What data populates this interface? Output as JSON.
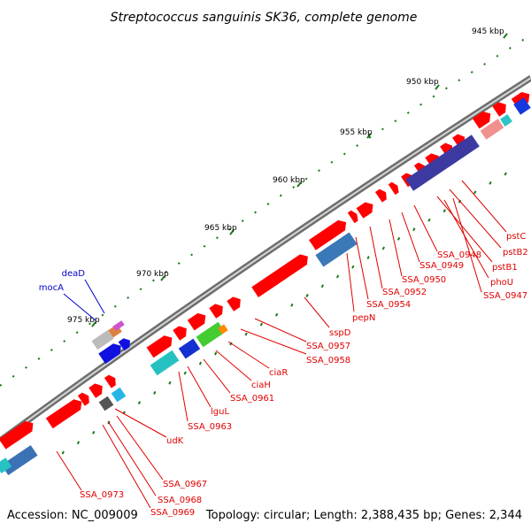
{
  "title": "Streptococcus sanguinis SK36, complete genome",
  "footer": {
    "accession": "Accession: NC_009009",
    "summary": "Topology: circular; Length: 2,388,435 bp; Genes: 2,344"
  },
  "colors": {
    "backbone": "#8c8c8c",
    "tick": "#1a7a1a",
    "gene_forward": "#ff0000",
    "label_red": "#e00000",
    "label_blue": "#0000cc"
  },
  "scale_labels": [
    "945 kbp",
    "950 kbp",
    "955 kbp",
    "960 kbp",
    "965 kbp",
    "970 kbp",
    "975 kbp"
  ],
  "gene_labels": [
    {
      "text": "pstC",
      "color": "red"
    },
    {
      "text": "pstB2",
      "color": "red"
    },
    {
      "text": "pstB1",
      "color": "red"
    },
    {
      "text": "SSA_0948",
      "color": "red"
    },
    {
      "text": "SSA_0949",
      "color": "red"
    },
    {
      "text": "SSA_0950",
      "color": "red"
    },
    {
      "text": "phoU",
      "color": "red"
    },
    {
      "text": "SSA_0947",
      "color": "red"
    },
    {
      "text": "SSA_0952",
      "color": "red"
    },
    {
      "text": "SSA_0954",
      "color": "red"
    },
    {
      "text": "pepN",
      "color": "red"
    },
    {
      "text": "sspD",
      "color": "red"
    },
    {
      "text": "SSA_0957",
      "color": "red"
    },
    {
      "text": "SSA_0958",
      "color": "red"
    },
    {
      "text": "ciaR",
      "color": "red"
    },
    {
      "text": "ciaH",
      "color": "red"
    },
    {
      "text": "SSA_0961",
      "color": "red"
    },
    {
      "text": "lguL",
      "color": "red"
    },
    {
      "text": "SSA_0963",
      "color": "red"
    },
    {
      "text": "udK",
      "color": "red"
    },
    {
      "text": "SSA_0967",
      "color": "red"
    },
    {
      "text": "SSA_0968",
      "color": "red"
    },
    {
      "text": "SSA_0969",
      "color": "red"
    },
    {
      "text": "SSA_0973",
      "color": "red"
    },
    {
      "text": "deaD",
      "color": "blue"
    },
    {
      "text": "mocA",
      "color": "blue"
    }
  ]
}
